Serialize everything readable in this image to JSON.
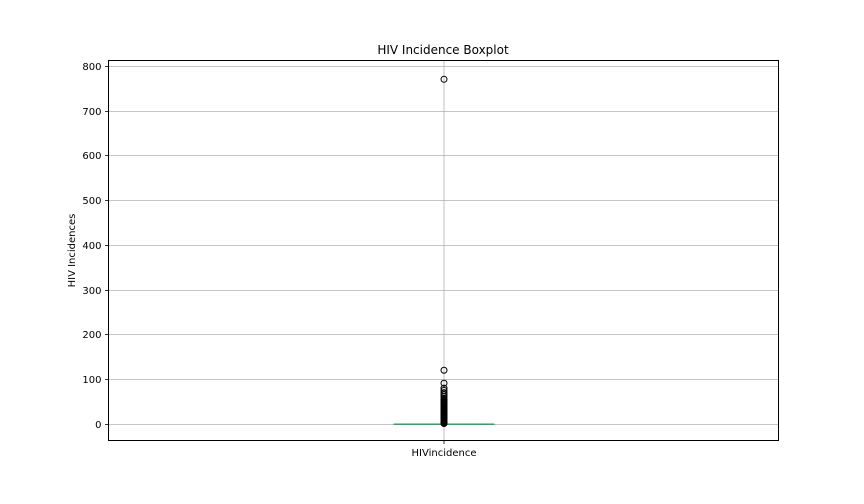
{
  "chart_data": {
    "type": "boxplot",
    "title": "HIV Incidence Boxplot",
    "xlabel": "",
    "ylabel": "HIV Incidences",
    "categories": [
      "HIVincidence"
    ],
    "ylim": [
      -37,
      812
    ],
    "yticks": [
      0,
      100,
      200,
      300,
      400,
      500,
      600,
      700,
      800
    ],
    "grid": true,
    "box": {
      "min": 0,
      "q1": 0,
      "median": 0,
      "q3": 0,
      "max": 0
    },
    "outliers": [
      1,
      2,
      3,
      4,
      5,
      6,
      8,
      10,
      12,
      14,
      16,
      18,
      20,
      22,
      24,
      26,
      28,
      30,
      32,
      34,
      36,
      38,
      40,
      42,
      44,
      46,
      48,
      50,
      52,
      55,
      58,
      62,
      66,
      70,
      75,
      80,
      91,
      120,
      770
    ],
    "colors": {
      "median": "#2ca02c",
      "box": "#1f77b4",
      "grid": "#b0b0b0",
      "axes": "#000000"
    }
  }
}
